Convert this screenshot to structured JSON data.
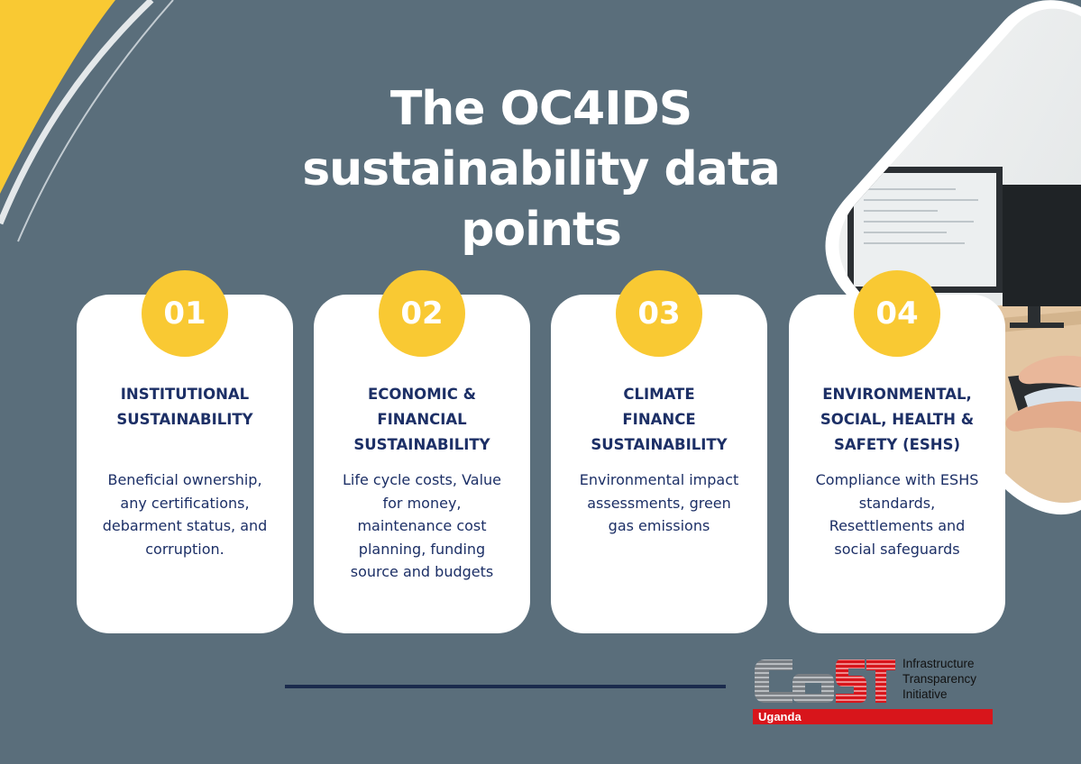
{
  "title": {
    "lines": [
      "The OC4IDS",
      "sustainability data",
      "points"
    ]
  },
  "cards": [
    {
      "number": "01",
      "heading": [
        "INSTITUTIONAL",
        "SUSTAINABILITY"
      ],
      "body": [
        "Beneficial ownership,",
        "any certifications,",
        "debarment status, and",
        "corruption."
      ]
    },
    {
      "number": "02",
      "heading": [
        "ECONOMIC &",
        "FINANCIAL",
        "SUSTAINABILITY"
      ],
      "body": [
        "Life cycle costs, Value",
        "for money,",
        "maintenance cost",
        "planning, funding",
        "source and budgets"
      ]
    },
    {
      "number": "03",
      "heading": [
        "CLIMATE",
        "FINANCE",
        "SUSTAINABILITY"
      ],
      "body": [
        "Environmental impact",
        "assessments, green",
        "gas emissions"
      ]
    },
    {
      "number": "04",
      "heading": [
        "ENVIRONMENTAL,",
        "SOCIAL, HEALTH &",
        "SAFETY (ESHS)"
      ],
      "body": [
        "Compliance with ESHS",
        "standards,",
        "Resettlements and",
        "social safeguards"
      ]
    }
  ],
  "logo": {
    "wordmark": "CoST",
    "tagline": [
      "Infrastructure",
      "Transparency",
      "Initiative"
    ],
    "country": "Uganda"
  },
  "colors": {
    "background": "#5a6e7b",
    "accent_yellow": "#f9c933",
    "navy_text": "#1c2f66",
    "logo_red": "#d8151b"
  }
}
